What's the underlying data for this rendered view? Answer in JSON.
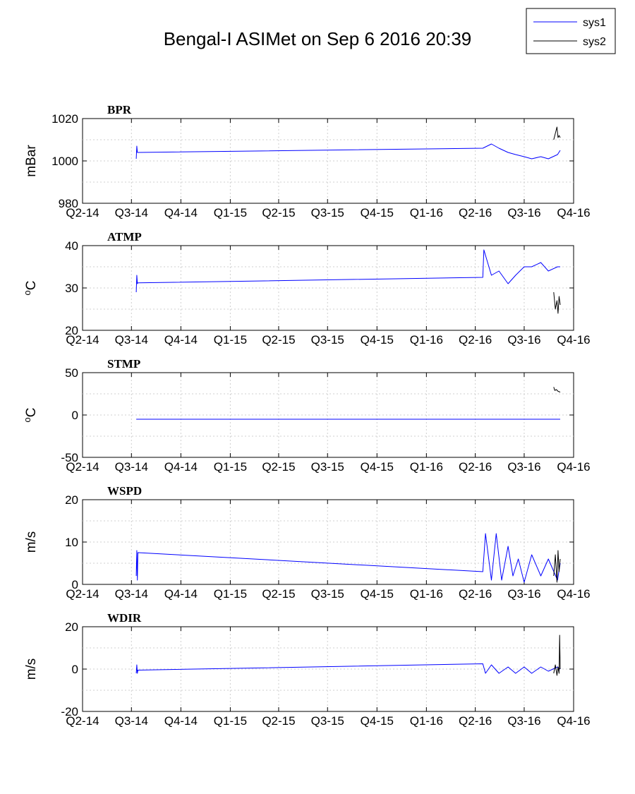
{
  "figure": {
    "title": "Bengal-I ASIMet on Sep  6 2016 20:39"
  },
  "legend": {
    "placement": "top-right",
    "entries": [
      {
        "name": "sys1",
        "color": "#0000ff"
      },
      {
        "name": "sys2",
        "color": "#000000"
      }
    ]
  },
  "chart_data": [
    {
      "type": "line",
      "title": "BPR",
      "ylabel": "mBar",
      "ylim": [
        980,
        1020
      ],
      "yticks": [
        980,
        1000,
        1020
      ],
      "xticks": [
        "Q2-14",
        "Q3-14",
        "Q4-14",
        "Q1-15",
        "Q2-15",
        "Q3-15",
        "Q4-15",
        "Q1-16",
        "Q2-16",
        "Q3-16",
        "Q4-16"
      ],
      "grid": true,
      "series": [
        {
          "name": "sys1",
          "color": "#0000ff",
          "x": [
            "2014-07-10",
            "2014-07-11",
            "2014-07-12",
            "2014-07-13",
            "2016-04-15",
            "2016-05-01",
            "2016-05-15",
            "2016-06-01",
            "2016-06-15",
            "2016-07-01",
            "2016-07-15",
            "2016-08-01",
            "2016-08-15",
            "2016-09-01",
            "2016-09-06"
          ],
          "y": [
            1001,
            1007,
            1004,
            1004,
            1006,
            1008,
            1006,
            1004,
            1003,
            1002,
            1001,
            1002,
            1001,
            1003,
            1005
          ]
        },
        {
          "name": "sys2",
          "color": "#000000",
          "x": [
            "2016-08-25",
            "2016-08-28",
            "2016-08-31",
            "2016-09-02",
            "2016-09-04",
            "2016-09-06"
          ],
          "y": [
            1010,
            1013,
            1016,
            1011,
            1012,
            1011
          ]
        }
      ]
    },
    {
      "type": "line",
      "title": "ATMP",
      "ylabel": "oC",
      "ylim": [
        20,
        40
      ],
      "yticks": [
        20,
        30,
        40
      ],
      "xticks": [
        "Q2-14",
        "Q3-14",
        "Q4-14",
        "Q1-15",
        "Q2-15",
        "Q3-15",
        "Q4-15",
        "Q1-16",
        "Q2-16",
        "Q3-16",
        "Q4-16"
      ],
      "grid": true,
      "series": [
        {
          "name": "sys1",
          "color": "#0000ff",
          "x": [
            "2014-07-10",
            "2014-07-11",
            "2014-07-12",
            "2014-07-13",
            "2016-04-15",
            "2016-04-17",
            "2016-05-01",
            "2016-05-15",
            "2016-06-01",
            "2016-06-15",
            "2016-07-01",
            "2016-07-15",
            "2016-08-01",
            "2016-08-15",
            "2016-09-01",
            "2016-09-06"
          ],
          "y": [
            29,
            33,
            31,
            31.2,
            32.5,
            39,
            33,
            34,
            31,
            33,
            35,
            35,
            36,
            34,
            35,
            35
          ]
        },
        {
          "name": "sys2",
          "color": "#000000",
          "x": [
            "2016-08-25",
            "2016-08-28",
            "2016-08-31",
            "2016-09-02",
            "2016-09-04",
            "2016-09-06"
          ],
          "y": [
            29,
            25,
            27,
            24,
            28,
            26
          ]
        }
      ]
    },
    {
      "type": "line",
      "title": "STMP",
      "ylabel": "oC",
      "ylim": [
        -50,
        50
      ],
      "yticks": [
        -50,
        0,
        50
      ],
      "xticks": [
        "Q2-14",
        "Q3-14",
        "Q4-14",
        "Q1-15",
        "Q2-15",
        "Q3-15",
        "Q4-15",
        "Q1-16",
        "Q2-16",
        "Q3-16",
        "Q4-16"
      ],
      "grid": true,
      "series": [
        {
          "name": "sys1",
          "color": "#0000ff",
          "x": [
            "2014-07-10",
            "2016-09-06"
          ],
          "y": [
            -5,
            -5
          ]
        },
        {
          "name": "sys2",
          "color": "#000000",
          "x": [
            "2016-08-25",
            "2016-08-27",
            "2016-08-30",
            "2016-09-02",
            "2016-09-06"
          ],
          "y": [
            33,
            29,
            30,
            28,
            27
          ]
        }
      ]
    },
    {
      "type": "line",
      "title": "WSPD",
      "ylabel": "m/s",
      "ylim": [
        0,
        20
      ],
      "yticks": [
        0,
        10,
        20
      ],
      "xticks": [
        "Q2-14",
        "Q3-14",
        "Q4-14",
        "Q1-15",
        "Q2-15",
        "Q3-15",
        "Q4-15",
        "Q1-16",
        "Q2-16",
        "Q3-16",
        "Q4-16"
      ],
      "grid": true,
      "series": [
        {
          "name": "sys1",
          "color": "#0000ff",
          "x": [
            "2014-07-10",
            "2014-07-11",
            "2014-07-12",
            "2014-07-13",
            "2016-04-15",
            "2016-04-20",
            "2016-05-01",
            "2016-05-10",
            "2016-05-20",
            "2016-06-01",
            "2016-06-10",
            "2016-06-20",
            "2016-07-01",
            "2016-07-15",
            "2016-08-01",
            "2016-08-15",
            "2016-09-01",
            "2016-09-06"
          ],
          "y": [
            2,
            8,
            1,
            7.5,
            3,
            12,
            1,
            12,
            1,
            9,
            2,
            6,
            0.5,
            7,
            2,
            6,
            1,
            5
          ]
        },
        {
          "name": "sys2",
          "color": "#000000",
          "x": [
            "2016-08-25",
            "2016-08-28",
            "2016-08-31",
            "2016-09-02",
            "2016-09-04",
            "2016-09-06"
          ],
          "y": [
            2,
            7,
            0.5,
            8,
            3,
            6
          ]
        }
      ]
    },
    {
      "type": "line",
      "title": "WDIR",
      "ylabel": "m/s",
      "ylim": [
        -20,
        20
      ],
      "yticks": [
        -20,
        0,
        20
      ],
      "xticks": [
        "Q2-14",
        "Q3-14",
        "Q4-14",
        "Q1-15",
        "Q2-15",
        "Q3-15",
        "Q4-15",
        "Q1-16",
        "Q2-16",
        "Q3-16",
        "Q4-16"
      ],
      "grid": true,
      "series": [
        {
          "name": "sys1",
          "color": "#0000ff",
          "x": [
            "2014-07-10",
            "2014-07-11",
            "2014-07-12",
            "2014-07-13",
            "2016-04-15",
            "2016-04-20",
            "2016-05-01",
            "2016-05-15",
            "2016-06-01",
            "2016-06-15",
            "2016-07-01",
            "2016-07-15",
            "2016-08-01",
            "2016-08-15",
            "2016-09-01",
            "2016-09-06"
          ],
          "y": [
            -2,
            2,
            -2,
            -0.5,
            2.5,
            -2,
            2,
            -2,
            1,
            -2,
            1,
            -2,
            1,
            -1,
            1,
            0
          ]
        },
        {
          "name": "sys2",
          "color": "#000000",
          "x": [
            "2016-08-25",
            "2016-08-28",
            "2016-08-31",
            "2016-09-02",
            "2016-09-04",
            "2016-09-05",
            "2016-09-06"
          ],
          "y": [
            -2,
            2,
            -3,
            1,
            -2,
            16,
            0
          ]
        }
      ]
    }
  ]
}
